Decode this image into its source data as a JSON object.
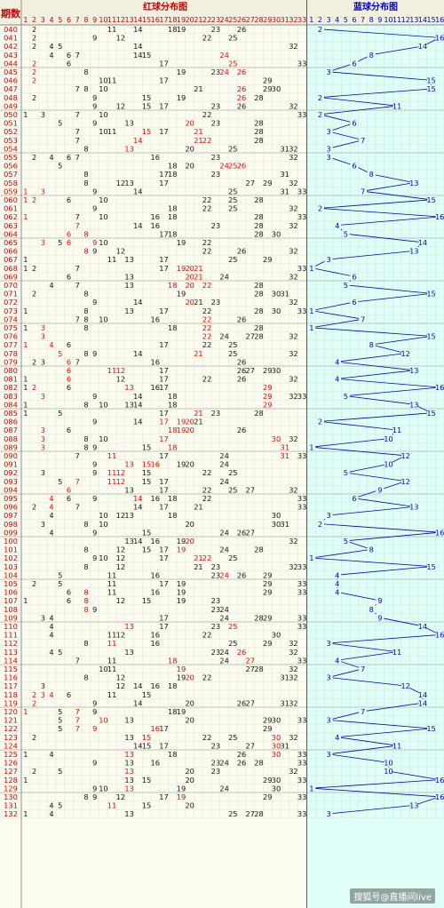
{
  "header": {
    "period_label": "期数",
    "red_title": "红球分布图",
    "blue_title": "蓝球分布图"
  },
  "red_columns": [
    "1",
    "2",
    "3",
    "4",
    "5",
    "6",
    "7",
    "8",
    "9",
    "10",
    "11",
    "12",
    "13",
    "14",
    "15",
    "16",
    "17",
    "18",
    "19",
    "20",
    "21",
    "22",
    "23",
    "24",
    "25",
    "26",
    "27",
    "28",
    "29",
    "30",
    "31",
    "32",
    "33"
  ],
  "blue_columns": [
    "1",
    "2",
    "3",
    "4",
    "5",
    "6",
    "7",
    "8",
    "9",
    "10",
    "11",
    "12",
    "13",
    "14",
    "15",
    "16"
  ],
  "colors": {
    "period_text": "#cc0000",
    "red_ball_text": "#ee0000",
    "normal_text": "#111111",
    "blue_text": "#0000cc",
    "blue_line": "#0000cc",
    "grid_band": "#c8dcc8",
    "red_bg": "#fdfcf0",
    "blue_bg": "#dffff8",
    "header_bg": "#f3f0e0",
    "divider": "#008080"
  },
  "watermark": "搜狐号@直播间live",
  "chart_data": {
    "type": "table",
    "periods": [
      "040",
      "041",
      "042",
      "043",
      "044",
      "045",
      "046",
      "047",
      "048",
      "049",
      "050",
      "051",
      "052",
      "053",
      "054",
      "055",
      "056",
      "057",
      "058",
      "059",
      "060",
      "061",
      "062",
      "063",
      "064",
      "065",
      "066",
      "067",
      "068",
      "069",
      "070",
      "071",
      "072",
      "073",
      "074",
      "075",
      "076",
      "077",
      "078",
      "079",
      "080",
      "081",
      "082",
      "083",
      "084",
      "085",
      "086",
      "087",
      "088",
      "089",
      "090",
      "091",
      "092",
      "093",
      "094",
      "095",
      "096",
      "097",
      "098",
      "099",
      "100",
      "101",
      "102",
      "103",
      "104",
      "105",
      "106",
      "107",
      "108",
      "109",
      "110",
      "111",
      "112",
      "113",
      "114",
      "115",
      "116",
      "117",
      "118",
      "119",
      "120",
      "121",
      "122",
      "123",
      "124",
      "125",
      "126",
      "127",
      "128",
      "129",
      "130",
      "131",
      "132"
    ],
    "red_balls": [
      [
        2,
        11,
        14,
        18,
        19,
        23,
        26
      ],
      [
        2,
        9,
        12,
        22,
        25
      ],
      [
        2,
        4,
        5,
        14,
        32
      ],
      [
        4,
        6,
        7,
        14,
        15,
        24
      ],
      [
        2,
        6,
        17,
        25,
        33
      ],
      [
        2,
        8,
        19,
        23,
        24,
        26
      ],
      [
        2,
        10,
        11,
        17,
        29
      ],
      [
        7,
        8,
        10,
        21,
        26,
        29,
        30
      ],
      [
        2,
        9,
        15,
        19,
        26,
        28
      ],
      [
        9,
        12,
        15,
        17,
        23,
        26,
        32
      ],
      [
        1,
        3,
        7,
        10,
        22,
        33
      ],
      [
        5,
        9,
        13,
        20,
        23,
        28
      ],
      [
        7,
        10,
        11,
        15,
        17,
        21,
        28
      ],
      [
        7,
        14,
        21,
        22,
        28
      ],
      [
        8,
        13,
        20,
        25,
        31,
        32
      ],
      [
        2,
        4,
        6,
        7,
        16,
        23,
        32
      ],
      [
        5,
        18,
        20,
        24,
        25,
        26
      ],
      [
        8,
        17,
        18,
        23,
        31
      ],
      [
        8,
        12,
        13,
        17,
        27,
        29,
        32
      ],
      [
        1,
        3,
        9,
        14,
        25,
        31,
        33
      ],
      [
        1,
        2,
        6,
        10,
        22,
        25,
        28
      ],
      [
        9,
        18,
        22,
        25,
        32
      ],
      [
        1,
        7,
        10,
        16,
        18,
        28,
        33
      ],
      [
        7,
        14,
        16,
        23,
        28,
        32
      ],
      [
        6,
        8,
        17,
        18,
        28,
        30
      ],
      [
        3,
        5,
        6,
        9,
        10,
        19,
        22
      ],
      [
        8,
        9,
        12,
        22,
        26,
        32
      ],
      [
        1,
        11,
        13,
        17,
        25,
        29
      ],
      [
        1,
        2,
        7,
        17,
        19,
        20,
        21,
        33
      ],
      [
        6,
        13,
        20,
        21,
        24,
        32
      ],
      [
        4,
        7,
        13,
        18,
        20,
        22,
        28
      ],
      [
        2,
        8,
        19,
        28,
        30,
        31
      ],
      [
        9,
        14,
        20,
        21,
        23,
        32
      ],
      [
        1,
        8,
        13,
        17,
        22,
        28,
        30,
        33
      ],
      [
        7,
        8,
        10,
        16,
        22,
        26
      ],
      [
        1,
        3,
        8,
        18,
        22,
        28
      ],
      [
        3,
        22,
        24,
        27,
        28,
        32
      ],
      [
        1,
        4,
        6,
        17,
        22,
        25
      ],
      [
        5,
        8,
        9,
        14,
        21,
        25,
        32
      ],
      [
        2,
        3,
        6,
        7,
        16,
        26
      ],
      [
        6,
        11,
        12,
        17,
        26,
        27,
        29,
        30
      ],
      [
        1,
        6,
        12,
        17,
        22,
        26,
        32
      ],
      [
        1,
        2,
        6,
        13,
        16,
        17,
        29
      ],
      [
        3,
        9,
        14,
        18,
        29,
        32,
        33
      ],
      [
        1,
        8,
        10,
        13,
        14,
        18,
        29
      ],
      [
        1,
        5,
        17,
        21,
        23,
        28
      ],
      [
        9,
        14,
        17,
        19,
        20,
        21
      ],
      [
        3,
        6,
        18,
        19,
        20,
        26
      ],
      [
        3,
        8,
        10,
        17,
        30,
        32
      ],
      [
        3,
        8,
        9,
        15,
        18,
        31
      ],
      [
        7,
        11,
        17,
        24,
        31,
        33
      ],
      [
        9,
        13,
        15,
        16,
        19,
        20,
        24
      ],
      [
        3,
        9,
        11,
        12,
        15,
        22,
        25
      ],
      [
        5,
        7,
        11,
        12,
        15,
        17,
        24
      ],
      [
        6,
        13,
        17,
        22,
        25,
        27,
        32
      ],
      [
        4,
        6,
        9,
        14,
        16,
        18,
        22,
        33
      ],
      [
        2,
        4,
        7,
        14,
        17,
        21,
        33
      ],
      [
        4,
        10,
        12,
        13,
        18,
        30
      ],
      [
        3,
        8,
        10,
        20,
        30,
        31
      ],
      [
        4,
        9,
        15,
        24,
        26,
        27
      ],
      [
        13,
        14,
        16,
        19,
        20,
        32
      ],
      [
        8,
        12,
        15,
        17,
        19,
        24,
        28
      ],
      [
        9,
        10,
        12,
        17,
        21,
        22,
        25
      ],
      [
        8,
        12,
        21,
        23,
        32,
        33
      ],
      [
        5,
        11,
        16,
        23,
        24,
        26,
        29
      ],
      [
        2,
        5,
        11,
        17,
        19,
        29,
        33
      ],
      [
        6,
        8,
        11,
        16,
        19,
        29,
        33
      ],
      [
        1,
        6,
        8,
        12,
        15,
        19,
        23
      ],
      [
        8,
        9,
        23,
        24
      ],
      [
        3,
        4,
        17,
        24,
        28,
        29,
        33
      ],
      [
        4,
        13,
        17,
        23,
        25,
        33
      ],
      [
        4,
        11,
        12,
        16,
        22,
        30
      ],
      [
        8,
        11,
        16,
        25,
        29,
        32
      ],
      [
        4,
        5,
        13,
        23,
        24,
        26,
        32
      ],
      [
        7,
        11,
        18,
        24,
        27,
        33
      ],
      [
        10,
        11,
        19,
        27,
        28,
        32
      ],
      [
        8,
        12,
        19,
        20,
        22,
        31,
        32
      ],
      [
        3,
        12,
        14,
        16,
        18
      ],
      [
        2,
        3,
        4,
        6,
        11,
        15
      ],
      [
        2,
        9,
        14,
        20,
        26,
        27,
        31,
        32
      ],
      [
        1,
        5,
        7,
        9,
        18,
        19
      ],
      [
        5,
        7,
        10,
        13,
        20,
        29,
        30,
        33
      ],
      [
        5,
        7,
        9,
        16,
        17,
        29
      ],
      [
        2,
        13,
        15,
        22,
        25,
        30,
        32
      ],
      [
        14,
        15,
        17,
        23,
        27,
        30,
        31
      ],
      [
        1,
        4,
        13,
        18,
        26,
        30,
        33
      ],
      [
        9,
        13,
        16,
        23,
        24,
        26,
        28,
        33
      ],
      [
        2,
        5,
        13,
        20,
        23,
        32
      ],
      [
        1,
        13,
        15,
        20,
        29,
        30,
        33
      ],
      [
        9,
        10,
        13,
        19,
        24,
        30
      ],
      [
        8,
        9,
        12,
        17,
        19,
        29,
        33
      ],
      [
        4,
        5,
        11,
        15,
        20
      ],
      [
        1,
        4,
        13,
        25,
        27,
        28,
        33
      ]
    ],
    "red_highlight": [
      [],
      [],
      [],
      [
        24
      ],
      [
        2,
        25
      ],
      [
        2,
        24,
        26
      ],
      [
        2
      ],
      [
        26
      ],
      [
        26
      ],
      [],
      [],
      [
        20
      ],
      [
        15,
        21
      ],
      [
        14,
        21,
        22
      ],
      [
        13
      ],
      [],
      [
        24,
        25,
        26
      ],
      [],
      [],
      [
        1,
        3
      ],
      [
        1,
        2
      ],
      [],
      [
        1
      ],
      [
        7
      ],
      [
        6,
        8
      ],
      [
        3,
        6,
        9
      ],
      [
        8
      ],
      [],
      [
        19,
        20,
        21
      ],
      [
        20,
        21
      ],
      [
        18,
        20,
        22
      ],
      [],
      [
        20
      ],
      [],
      [
        22
      ],
      [
        3,
        22
      ],
      [
        3,
        22
      ],
      [
        1,
        4
      ],
      [
        5,
        21
      ],
      [
        6
      ],
      [
        6,
        11,
        12
      ],
      [
        6
      ],
      [
        2,
        13,
        29
      ],
      [
        3,
        29
      ],
      [
        29
      ],
      [
        21
      ],
      [
        17,
        18,
        19,
        20
      ],
      [
        3,
        18,
        19,
        20
      ],
      [
        3,
        17,
        30
      ],
      [
        3,
        18,
        31
      ],
      [
        11,
        31
      ],
      [
        13,
        15,
        16
      ],
      [
        11,
        12
      ],
      [
        7,
        11,
        12
      ],
      [
        6
      ],
      [
        4,
        14
      ],
      [
        4,
        16
      ],
      [],
      [],
      [],
      [
        20
      ],
      [
        18,
        19
      ],
      [
        21,
        22
      ],
      [],
      [
        24
      ],
      [],
      [
        8
      ],
      [
        8
      ],
      [
        8
      ],
      [],
      [
        13,
        25
      ],
      [],
      [
        11
      ],
      [
        26
      ],
      [
        18,
        27
      ],
      [
        19
      ],
      [
        20
      ],
      [],
      [
        2,
        3,
        4
      ],
      [
        2
      ],
      [
        1,
        7
      ],
      [
        7,
        10
      ],
      [
        7,
        9,
        16
      ],
      [
        15,
        30
      ],
      [
        30
      ],
      [
        13,
        30
      ],
      [],
      [
        13
      ],
      [],
      [
        13
      ],
      [
        13,
        19
      ],
      [
        11
      ],
      []
    ],
    "blue_balls": [
      2,
      16,
      14,
      8,
      6,
      3,
      15,
      15,
      2,
      11,
      2,
      6,
      3,
      7,
      3,
      3,
      6,
      8,
      13,
      7,
      15,
      2,
      16,
      4,
      5,
      14,
      13,
      3,
      1,
      6,
      5,
      15,
      6,
      1,
      7,
      1,
      15,
      8,
      12,
      4,
      13,
      4,
      16,
      5,
      13,
      15,
      2,
      11,
      10,
      1,
      12,
      10,
      5,
      12,
      9,
      6,
      13,
      3,
      2,
      16,
      5,
      8,
      1,
      15,
      4,
      4,
      4,
      9,
      8,
      9,
      14,
      16,
      3,
      11,
      4,
      7,
      3,
      12,
      14,
      14,
      7,
      3,
      15,
      4,
      11,
      3,
      10,
      10,
      16,
      1,
      16,
      13,
      3
    ]
  }
}
